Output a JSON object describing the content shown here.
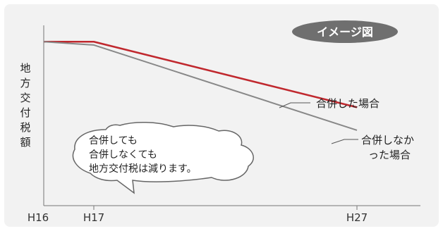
{
  "chart_data": {
    "type": "line",
    "x": [
      "H16",
      "H17",
      "H27"
    ],
    "ylabel": "地方交付税額",
    "badge": "イメージ図",
    "series": [
      {
        "name": "合併した場合",
        "values": [
          100,
          100,
          60
        ],
        "color": "#c0282e"
      },
      {
        "name": "合併しなかった場合",
        "values": [
          100,
          98,
          46
        ],
        "color": "#888888"
      }
    ],
    "series_label_lines": [
      [
        "合併した場合"
      ],
      [
        "合併しなか",
        "った場合"
      ]
    ],
    "annotation": [
      "合併しても",
      "合併しなくても",
      "地方交付税は減ります。"
    ],
    "ylim": [
      0,
      110
    ],
    "grid": false,
    "background": "#f2f2f2"
  }
}
